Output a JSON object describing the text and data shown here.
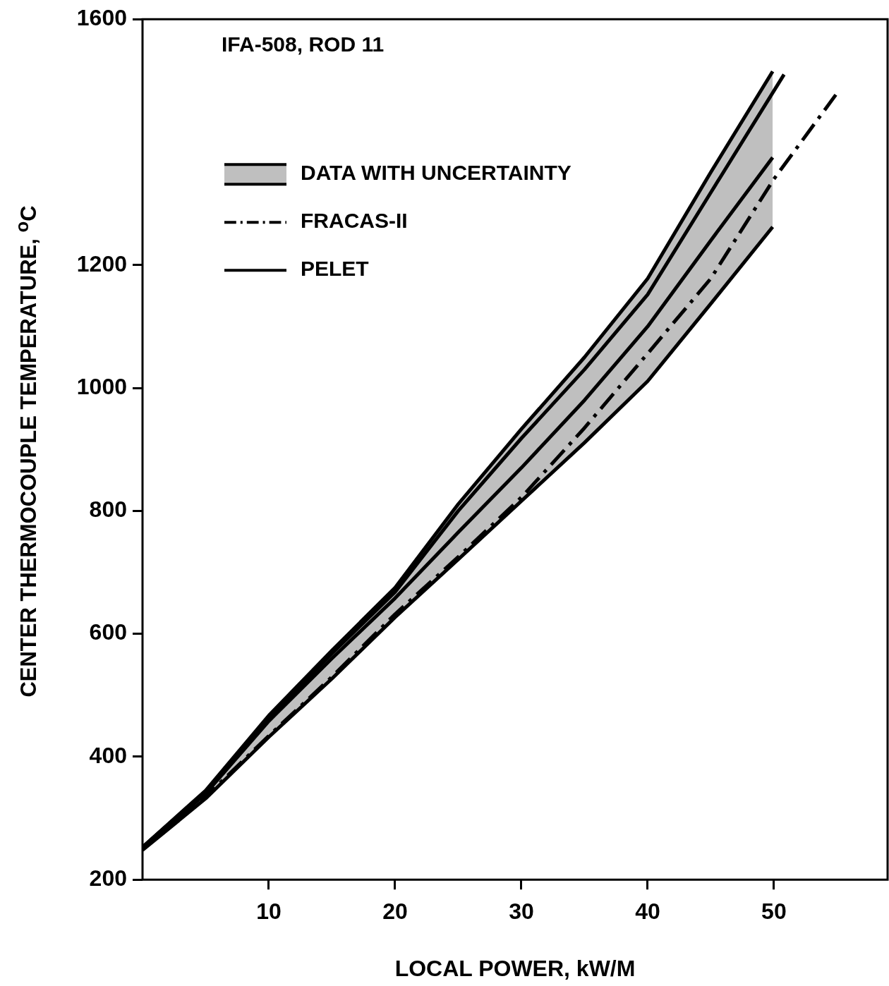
{
  "chart_data": {
    "type": "line",
    "xlabel": "LOCAL POWER, kW/M",
    "ylabel": "CENTER THERMOCOUPLE TEMPERATURE, $^{o}$C",
    "annotations": [
      "IFA-508, ROD 11"
    ],
    "xlim": [
      0,
      59
    ],
    "xticks": [
      10,
      20,
      30,
      40,
      50
    ],
    "ylim": [
      200,
      1600
    ],
    "yticks": [
      200,
      400,
      600,
      800,
      1000,
      1200,
      1600
    ],
    "grid": false,
    "legend": "top left",
    "marker": "none",
    "series": [
      {
        "name": "DATA WITH UNCERTAINTY",
        "color": "#000000",
        "line_style": "solid",
        "x": [
          0,
          5,
          10,
          15,
          20,
          25,
          30,
          35,
          40,
          45,
          49.9
        ],
        "values": [
          250,
          340,
          458,
          560,
          658,
          765,
          870,
          980,
          1100,
          1240,
          1375
        ],
        "lower": [
          248,
          332,
          432,
          527,
          627,
          721,
          816,
          911,
          1011,
          1137,
          1262
        ],
        "upper": [
          253,
          345,
          467,
          573,
          675,
          811,
          933,
          1050,
          1178,
          1351,
          1515
        ]
      },
      {
        "color": "#000000",
        "line_style": "solid",
        "x": [
          0,
          5,
          10,
          15,
          20,
          25,
          30,
          35,
          40,
          45,
          49.9
        ],
        "values": [
          253,
          345,
          467,
          573,
          675,
          811,
          933,
          1050,
          1178,
          1351,
          1515
        ]
      },
      {
        "color": "#000000",
        "line_style": "solid",
        "x": [
          0,
          5,
          10,
          15,
          20,
          25,
          30,
          35,
          40,
          45,
          49.9
        ],
        "values": [
          248,
          332,
          432,
          527,
          627,
          721,
          816,
          911,
          1011,
          1137,
          1262
        ]
      },
      {
        "name": "FRACAS-II",
        "color": "#000000",
        "line_style": "dashed",
        "x": [
          0,
          5,
          10,
          15,
          20,
          25,
          30,
          35,
          40,
          45,
          50,
          54.9
        ],
        "values": [
          251,
          335,
          434,
          530,
          632,
          725,
          822,
          935,
          1056,
          1178,
          1340,
          1477
        ]
      },
      {
        "name": "PELET",
        "color": "#000000",
        "line_style": "solid",
        "x": [
          0,
          5,
          10,
          15,
          20,
          25,
          30,
          35,
          40,
          45,
          50.8
        ],
        "values": [
          253,
          343,
          463,
          568,
          668,
          800,
          918,
          1030,
          1152,
          1318,
          1510
        ]
      }
    ]
  }
}
